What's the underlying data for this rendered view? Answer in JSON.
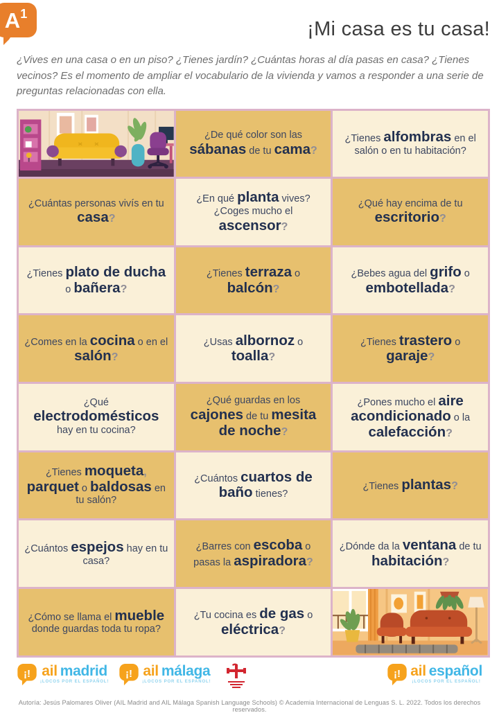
{
  "header": {
    "level_letter": "A",
    "level_number": "1",
    "title": "¡Mi casa es tu casa!",
    "intro": "¿Vives en una casa o en un piso? ¿Tienes jardín? ¿Cuántas horas al día pasas en casa? ¿Tienes vecinos? Es el momento de ampliar el vocabulario de la vivienda y vamos a responder a una serie de preguntas relacionadas con ella."
  },
  "grid": {
    "cells": [
      {
        "type": "image",
        "name": "living-room-illustration-purple",
        "template": "tpl-room-purple"
      },
      {
        "type": "question",
        "segments": [
          {
            "t": "¿De qué color son las ",
            "s": "n"
          },
          {
            "t": "sábanas",
            "s": "b"
          },
          {
            "t": " de tu ",
            "s": "n"
          },
          {
            "t": "cama",
            "s": "b"
          },
          {
            "t": "?",
            "s": "q"
          }
        ]
      },
      {
        "type": "question",
        "segments": [
          {
            "t": "¿Tienes ",
            "s": "n"
          },
          {
            "t": "alfombras",
            "s": "b"
          },
          {
            "t": " en el salón o en tu habitación?",
            "s": "n"
          }
        ]
      },
      {
        "type": "question",
        "segments": [
          {
            "t": "¿Cuántas personas vivís en tu ",
            "s": "n"
          },
          {
            "t": "casa",
            "s": "b"
          },
          {
            "t": "?",
            "s": "q"
          }
        ]
      },
      {
        "type": "question",
        "segments": [
          {
            "t": "¿En qué ",
            "s": "n"
          },
          {
            "t": "planta",
            "s": "b"
          },
          {
            "t": " vives? ¿Coges mucho el ",
            "s": "n"
          },
          {
            "t": "ascensor",
            "s": "b"
          },
          {
            "t": "?",
            "s": "q"
          }
        ]
      },
      {
        "type": "question",
        "segments": [
          {
            "t": "¿Qué hay encima de tu ",
            "s": "n"
          },
          {
            "t": "escritorio",
            "s": "b"
          },
          {
            "t": "?",
            "s": "q"
          }
        ]
      },
      {
        "type": "question",
        "segments": [
          {
            "t": "¿Tienes ",
            "s": "n"
          },
          {
            "t": "plato de ducha",
            "s": "b"
          },
          {
            "t": " o ",
            "s": "n"
          },
          {
            "t": "bañera",
            "s": "b"
          },
          {
            "t": "?",
            "s": "q"
          }
        ]
      },
      {
        "type": "question",
        "segments": [
          {
            "t": "¿Tienes ",
            "s": "n"
          },
          {
            "t": "terraza",
            "s": "b"
          },
          {
            "t": " o ",
            "s": "n"
          },
          {
            "t": "balcón",
            "s": "b"
          },
          {
            "t": "?",
            "s": "q"
          }
        ]
      },
      {
        "type": "question",
        "segments": [
          {
            "t": "¿Bebes agua del ",
            "s": "n"
          },
          {
            "t": "grifo",
            "s": "b"
          },
          {
            "t": " o ",
            "s": "n"
          },
          {
            "t": "embotellada",
            "s": "b"
          },
          {
            "t": "?",
            "s": "q"
          }
        ]
      },
      {
        "type": "question",
        "segments": [
          {
            "t": "¿Comes en la ",
            "s": "n"
          },
          {
            "t": "cocina",
            "s": "b"
          },
          {
            "t": " o en el ",
            "s": "n"
          },
          {
            "t": "salón",
            "s": "b"
          },
          {
            "t": "?",
            "s": "q"
          }
        ]
      },
      {
        "type": "question",
        "segments": [
          {
            "t": "¿Usas ",
            "s": "n"
          },
          {
            "t": "albornoz",
            "s": "b"
          },
          {
            "t": " o ",
            "s": "n"
          },
          {
            "t": "toalla",
            "s": "b"
          },
          {
            "t": "?",
            "s": "q"
          }
        ]
      },
      {
        "type": "question",
        "segments": [
          {
            "t": "¿Tienes ",
            "s": "n"
          },
          {
            "t": "trastero",
            "s": "b"
          },
          {
            "t": " o ",
            "s": "n"
          },
          {
            "t": "garaje",
            "s": "b"
          },
          {
            "t": "?",
            "s": "q"
          }
        ]
      },
      {
        "type": "question",
        "segments": [
          {
            "t": "¿Qué ",
            "s": "n"
          },
          {
            "t": "electrodomésticos",
            "s": "b"
          },
          {
            "t": " hay en tu cocina?",
            "s": "n"
          }
        ]
      },
      {
        "type": "question",
        "segments": [
          {
            "t": "¿Qué guardas en los ",
            "s": "n"
          },
          {
            "t": "cajones",
            "s": "b"
          },
          {
            "t": " de tu ",
            "s": "n"
          },
          {
            "t": "mesita de noche",
            "s": "b"
          },
          {
            "t": "?",
            "s": "q"
          }
        ]
      },
      {
        "type": "question",
        "segments": [
          {
            "t": "¿Pones mucho el ",
            "s": "n"
          },
          {
            "t": "aire acondicionado",
            "s": "b"
          },
          {
            "t": " o la ",
            "s": "n"
          },
          {
            "t": "calefacción",
            "s": "b"
          },
          {
            "t": "?",
            "s": "q"
          }
        ]
      },
      {
        "type": "question",
        "segments": [
          {
            "t": "¿Tienes ",
            "s": "n"
          },
          {
            "t": "moqueta",
            "s": "b"
          },
          {
            "t": ",",
            "s": "q"
          },
          {
            "t": " parquet",
            "s": "b"
          },
          {
            "t": " o ",
            "s": "n"
          },
          {
            "t": "baldosas",
            "s": "b"
          },
          {
            "t": " en tu salón?",
            "s": "n"
          }
        ]
      },
      {
        "type": "question",
        "segments": [
          {
            "t": "¿Cuántos ",
            "s": "n"
          },
          {
            "t": "cuartos de baño",
            "s": "b"
          },
          {
            "t": " tienes?",
            "s": "n"
          }
        ]
      },
      {
        "type": "question",
        "segments": [
          {
            "t": "¿Tienes ",
            "s": "n"
          },
          {
            "t": "plantas",
            "s": "b"
          },
          {
            "t": "?",
            "s": "q"
          }
        ]
      },
      {
        "type": "question",
        "segments": [
          {
            "t": "¿Cuántos ",
            "s": "n"
          },
          {
            "t": "espejos",
            "s": "b"
          },
          {
            "t": " hay en tu casa?",
            "s": "n"
          }
        ]
      },
      {
        "type": "question",
        "segments": [
          {
            "t": "¿Barres con ",
            "s": "n"
          },
          {
            "t": "escoba",
            "s": "b"
          },
          {
            "t": " o pasas la ",
            "s": "n"
          },
          {
            "t": "aspiradora",
            "s": "b"
          },
          {
            "t": "?",
            "s": "q"
          }
        ]
      },
      {
        "type": "question",
        "segments": [
          {
            "t": "¿Dónde da la ",
            "s": "n"
          },
          {
            "t": "ventana",
            "s": "b"
          },
          {
            "t": " de tu ",
            "s": "n"
          },
          {
            "t": "habitación",
            "s": "b"
          },
          {
            "t": "?",
            "s": "q"
          }
        ]
      },
      {
        "type": "question",
        "segments": [
          {
            "t": "¿Cómo se llama el ",
            "s": "n"
          },
          {
            "t": "mueble",
            "s": "b"
          },
          {
            "t": " donde guardas toda tu ropa?",
            "s": "n"
          }
        ]
      },
      {
        "type": "question",
        "segments": [
          {
            "t": "¿Tu cocina es ",
            "s": "n"
          },
          {
            "t": "de gas",
            "s": "b"
          },
          {
            "t": " o ",
            "s": "n"
          },
          {
            "t": "eléctrica",
            "s": "b"
          },
          {
            "t": "?",
            "s": "q"
          }
        ]
      },
      {
        "type": "image",
        "name": "living-room-illustration-orange",
        "template": "tpl-room-orange"
      }
    ]
  },
  "footer": {
    "logos": [
      {
        "prefix": "ail",
        "suffix": "madrid",
        "tagline": "¡LOCOS POR EL ESPAÑOL!"
      },
      {
        "prefix": "ail",
        "suffix": "málaga",
        "tagline": "¡LOCOS POR EL ESPAÑOL!"
      },
      {
        "name": "instituto-cervantes-accredited-center"
      },
      {
        "prefix": "ail",
        "suffix": "español",
        "tagline": "¡LOCOS POR EL ESPAÑOL!"
      }
    ],
    "copyright": "Autoría: Jesús Palomares Oliver (AIL Madrid and AIL Málaga Spanish Language Schools) © Academia Internacional de Lenguas S. L. 2022. Todos los derechos reservados."
  },
  "colors": {
    "cell_gold": "#e7c06e",
    "cell_cream": "#faf0d8",
    "grid_border_pink": "#dcb3c9",
    "question_navy": "#22304f",
    "question_secondary": "#3c4660",
    "question_mark_gray": "#8f8d95",
    "badge_orange": "#e87f2b",
    "logo_orange": "#f6a21c",
    "logo_blue": "#41b7e6",
    "cervantes_red": "#d22630",
    "title_gray": "#3d3d3d"
  }
}
